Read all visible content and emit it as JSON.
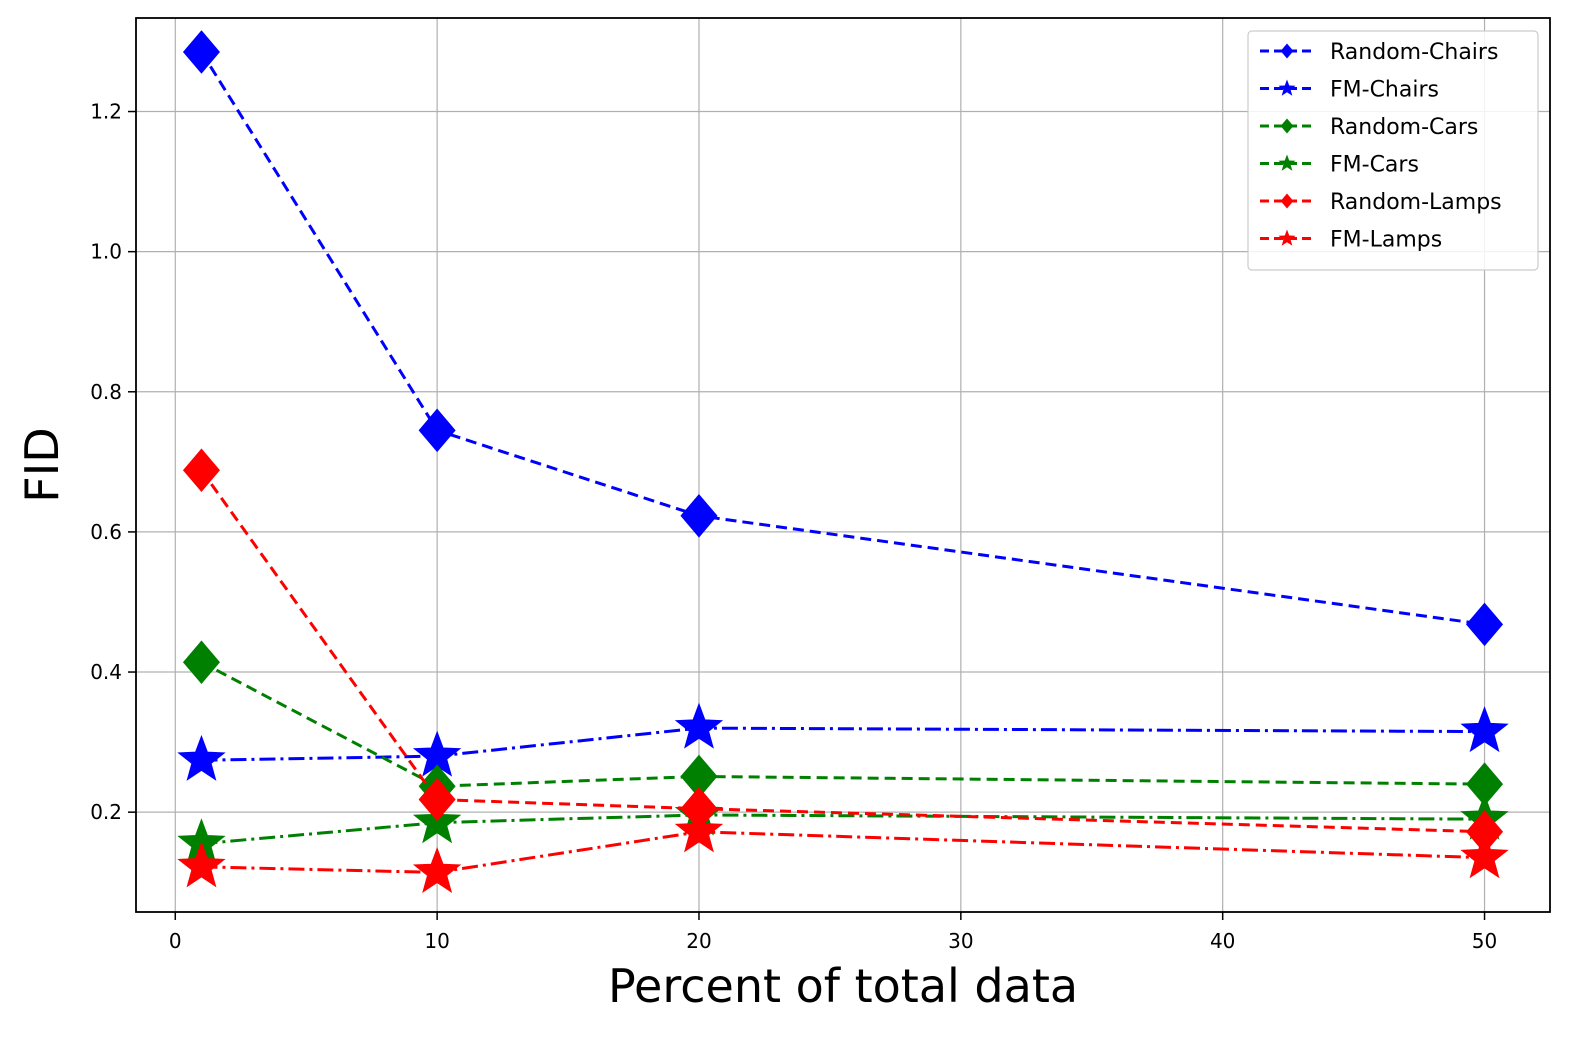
{
  "chart_data": {
    "type": "line",
    "title": "",
    "xlabel": "Percent of total data",
    "ylabel": "FID",
    "xlim": [
      -1.5,
      52.5
    ],
    "ylim": [
      0.0575,
      1.3335
    ],
    "xticks": [
      0,
      10,
      20,
      30,
      40,
      50
    ],
    "yticks": [
      0.2,
      0.4,
      0.6,
      0.8,
      1.0,
      1.2
    ],
    "xtick_labels": [
      "0",
      "10",
      "20",
      "30",
      "40",
      "50"
    ],
    "ytick_labels": [
      "0.2",
      "0.4",
      "0.6",
      "0.8",
      "1.0",
      "1.2"
    ],
    "grid": true,
    "legend_position": "top-right",
    "x": [
      1,
      10,
      20,
      50
    ],
    "series": [
      {
        "name": "Random-Chairs",
        "color": "#0000ff",
        "marker": "diamond",
        "linestyle": "dashed",
        "values": [
          1.285,
          0.745,
          0.623,
          0.468
        ]
      },
      {
        "name": "FM-Chairs",
        "color": "#0000ff",
        "marker": "star",
        "linestyle": "dashdot",
        "values": [
          0.274,
          0.28,
          0.32,
          0.315
        ]
      },
      {
        "name": "Random-Cars",
        "color": "#008000",
        "marker": "diamond",
        "linestyle": "dashed",
        "values": [
          0.414,
          0.237,
          0.251,
          0.24
        ]
      },
      {
        "name": "FM-Cars",
        "color": "#008000",
        "marker": "star",
        "linestyle": "dashdot",
        "values": [
          0.155,
          0.185,
          0.196,
          0.19
        ]
      },
      {
        "name": "Random-Lamps",
        "color": "#ff0000",
        "marker": "diamond",
        "linestyle": "dashed",
        "values": [
          0.688,
          0.218,
          0.205,
          0.172
        ]
      },
      {
        "name": "FM-Lamps",
        "color": "#ff0000",
        "marker": "star",
        "linestyle": "dashdot",
        "values": [
          0.122,
          0.114,
          0.172,
          0.135
        ]
      }
    ]
  }
}
